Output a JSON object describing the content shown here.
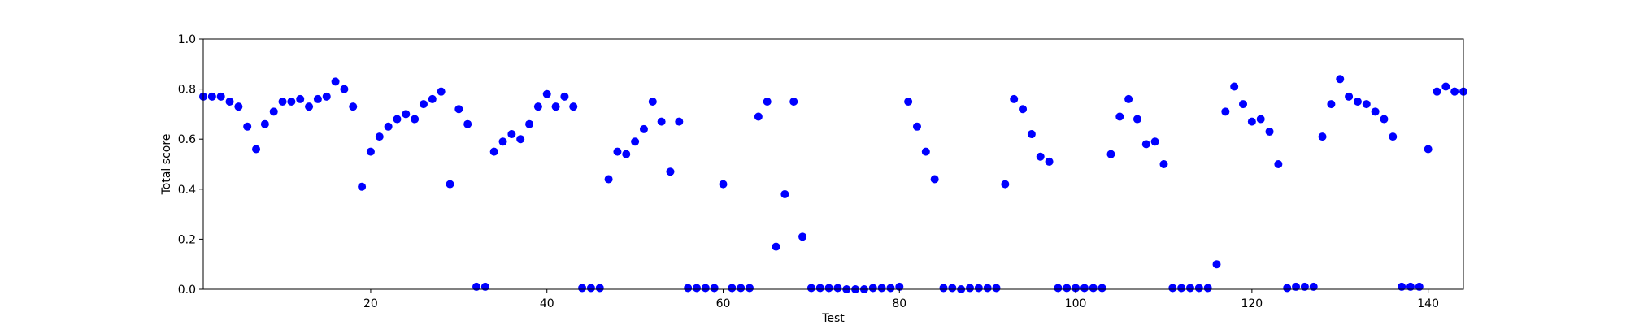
{
  "chart_data": {
    "type": "scatter",
    "title": "",
    "xlabel": "Test",
    "ylabel": "Total score",
    "xlim": [
      1,
      144
    ],
    "ylim": [
      0.0,
      1.0
    ],
    "xticks": [
      20,
      40,
      60,
      80,
      100,
      120,
      140
    ],
    "yticks": [
      "0.0",
      "0.2",
      "0.4",
      "0.6",
      "0.8",
      "1.0"
    ],
    "grid": false,
    "marker_color": "#0000ff",
    "x": [
      1,
      2,
      3,
      4,
      5,
      6,
      7,
      8,
      9,
      10,
      11,
      12,
      13,
      14,
      15,
      16,
      17,
      18,
      19,
      20,
      21,
      22,
      23,
      24,
      25,
      26,
      27,
      28,
      29,
      30,
      31,
      32,
      33,
      34,
      35,
      36,
      37,
      38,
      39,
      40,
      41,
      42,
      43,
      44,
      45,
      46,
      47,
      48,
      49,
      50,
      51,
      52,
      53,
      54,
      55,
      56,
      57,
      58,
      59,
      60,
      61,
      62,
      63,
      64,
      65,
      66,
      67,
      68,
      69,
      70,
      71,
      72,
      73,
      74,
      75,
      76,
      77,
      78,
      79,
      80,
      81,
      82,
      83,
      84,
      85,
      86,
      87,
      88,
      89,
      90,
      91,
      92,
      93,
      94,
      95,
      96,
      97,
      98,
      99,
      100,
      101,
      102,
      103,
      104,
      105,
      106,
      107,
      108,
      109,
      110,
      111,
      112,
      113,
      114,
      115,
      116,
      117,
      118,
      119,
      120,
      121,
      122,
      123,
      124,
      125,
      126,
      127,
      128,
      129,
      130,
      131,
      132,
      133,
      134,
      135,
      136,
      137,
      138,
      139,
      140,
      141,
      142,
      143,
      144
    ],
    "y": [
      0.77,
      0.77,
      0.77,
      0.75,
      0.73,
      0.65,
      0.56,
      0.66,
      0.71,
      0.75,
      0.75,
      0.76,
      0.73,
      0.76,
      0.77,
      0.83,
      0.8,
      0.73,
      0.41,
      0.55,
      0.61,
      0.65,
      0.68,
      0.7,
      0.68,
      0.74,
      0.76,
      0.79,
      0.42,
      0.72,
      0.66,
      0.01,
      0.01,
      0.55,
      0.59,
      0.62,
      0.6,
      0.66,
      0.73,
      0.78,
      0.73,
      0.77,
      0.73,
      0.005,
      0.005,
      0.005,
      0.44,
      0.55,
      0.54,
      0.59,
      0.64,
      0.75,
      0.67,
      0.47,
      0.67,
      0.005,
      0.005,
      0.005,
      0.005,
      0.42,
      0.005,
      0.005,
      0.005,
      0.69,
      0.75,
      0.17,
      0.38,
      0.75,
      0.21,
      0.005,
      0.005,
      0.005,
      0.005,
      0.0,
      0.0,
      0.0,
      0.005,
      0.005,
      0.005,
      0.01,
      0.75,
      0.65,
      0.55,
      0.44,
      0.005,
      0.005,
      0.0,
      0.005,
      0.005,
      0.005,
      0.005,
      0.42,
      0.76,
      0.72,
      0.62,
      0.53,
      0.51,
      0.005,
      0.005,
      0.005,
      0.005,
      0.005,
      0.005,
      0.54,
      0.69,
      0.76,
      0.68,
      0.58,
      0.59,
      0.5,
      0.005,
      0.005,
      0.005,
      0.005,
      0.005,
      0.1,
      0.71,
      0.81,
      0.74,
      0.67,
      0.68,
      0.63,
      0.5,
      0.005,
      0.01,
      0.01,
      0.01,
      0.61,
      0.74,
      0.84,
      0.77,
      0.75,
      0.74,
      0.71,
      0.68,
      0.61,
      0.01,
      0.01,
      0.01,
      0.56,
      0.79,
      0.81,
      0.79,
      0.79
    ]
  }
}
